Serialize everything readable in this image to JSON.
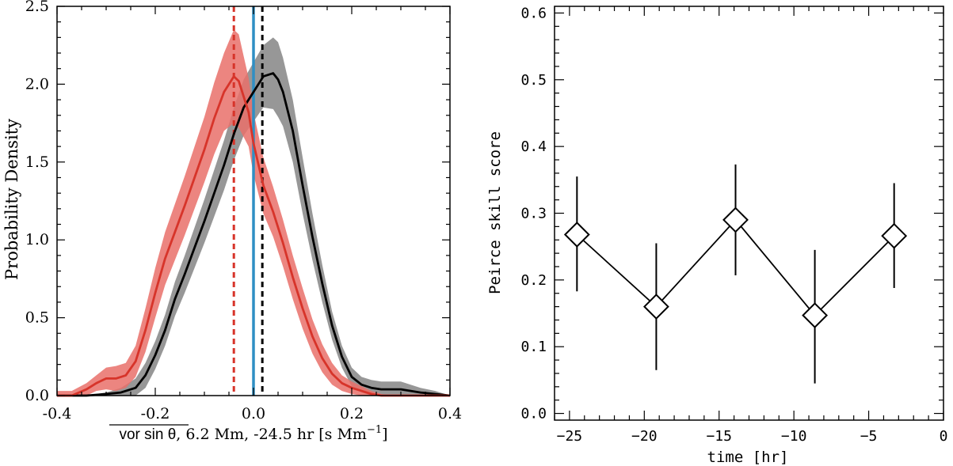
{
  "chart_data": [
    {
      "type": "line",
      "title": "",
      "ylabel": "Probability Density",
      "xlabel_main": "vor sin θ",
      "xlabel_rest": ", 6.2 Mm, -24.5 hr [s Mm",
      "xlabel_exp": "−1",
      "xlabel_close": "]",
      "xlim": [
        -0.4,
        0.4
      ],
      "ylim": [
        0,
        2.5
      ],
      "x_ticks": [
        "-0.4",
        "-0.2",
        "0.0",
        "0.2",
        "0.4"
      ],
      "y_ticks": [
        "0.0",
        "0.5",
        "1.0",
        "1.5",
        "2.0",
        "2.5"
      ],
      "colors": {
        "red": "#d7342a",
        "red_band": "#e9706a",
        "gray_band": "#8c8c8c",
        "black": "#000000",
        "blue": "#2f8fc4"
      },
      "series": [
        {
          "name": "red",
          "x": [
            -0.4,
            -0.37,
            -0.34,
            -0.32,
            -0.3,
            -0.28,
            -0.26,
            -0.24,
            -0.22,
            -0.2,
            -0.18,
            -0.16,
            -0.14,
            -0.12,
            -0.1,
            -0.08,
            -0.06,
            -0.04,
            -0.03,
            -0.02,
            -0.01,
            0.0,
            0.02,
            0.04,
            0.06,
            0.08,
            0.1,
            0.12,
            0.14,
            0.16,
            0.18,
            0.2,
            0.22,
            0.24,
            0.26,
            0.28,
            0.3,
            0.35,
            0.4
          ],
          "y": [
            0.0,
            0.0,
            0.04,
            0.08,
            0.11,
            0.11,
            0.13,
            0.22,
            0.42,
            0.66,
            0.88,
            1.05,
            1.22,
            1.4,
            1.58,
            1.78,
            1.95,
            2.05,
            2.02,
            1.92,
            1.82,
            1.62,
            1.35,
            1.18,
            0.98,
            0.76,
            0.56,
            0.38,
            0.24,
            0.14,
            0.08,
            0.05,
            0.03,
            0.01,
            0.0,
            0.0,
            0.0,
            0.0,
            0.0
          ],
          "band": [
            0.03,
            0.03,
            0.04,
            0.05,
            0.07,
            0.08,
            0.08,
            0.1,
            0.14,
            0.16,
            0.17,
            0.18,
            0.19,
            0.2,
            0.21,
            0.23,
            0.25,
            0.3,
            0.3,
            0.26,
            0.22,
            0.2,
            0.18,
            0.16,
            0.15,
            0.14,
            0.13,
            0.11,
            0.09,
            0.07,
            0.05,
            0.04,
            0.03,
            0.02,
            0.01,
            0.0,
            0.0,
            0.0,
            0.0
          ]
        },
        {
          "name": "black",
          "x": [
            -0.4,
            -0.34,
            -0.3,
            -0.27,
            -0.24,
            -0.22,
            -0.2,
            -0.18,
            -0.16,
            -0.14,
            -0.12,
            -0.1,
            -0.08,
            -0.06,
            -0.04,
            -0.02,
            0.0,
            0.02,
            0.04,
            0.05,
            0.06,
            0.08,
            0.1,
            0.12,
            0.14,
            0.16,
            0.18,
            0.2,
            0.22,
            0.24,
            0.26,
            0.28,
            0.3,
            0.32,
            0.34,
            0.37,
            0.4
          ],
          "y": [
            0.0,
            0.0,
            0.01,
            0.02,
            0.05,
            0.13,
            0.26,
            0.42,
            0.62,
            0.78,
            0.95,
            1.12,
            1.3,
            1.48,
            1.68,
            1.85,
            1.95,
            2.05,
            2.07,
            2.03,
            1.95,
            1.7,
            1.35,
            1.02,
            0.72,
            0.45,
            0.25,
            0.12,
            0.07,
            0.05,
            0.04,
            0.04,
            0.04,
            0.03,
            0.02,
            0.01,
            0.0
          ],
          "band": [
            0.0,
            0.0,
            0.01,
            0.03,
            0.06,
            0.08,
            0.09,
            0.1,
            0.11,
            0.12,
            0.13,
            0.14,
            0.15,
            0.16,
            0.17,
            0.18,
            0.19,
            0.2,
            0.23,
            0.24,
            0.22,
            0.2,
            0.18,
            0.15,
            0.12,
            0.09,
            0.07,
            0.06,
            0.05,
            0.05,
            0.05,
            0.05,
            0.05,
            0.04,
            0.03,
            0.02,
            0.0
          ]
        }
      ],
      "vlines": [
        {
          "name": "red-dashed",
          "x": -0.04,
          "style": "dashed",
          "color": "#d7342a"
        },
        {
          "name": "blue-solid",
          "x": 0.0,
          "style": "solid",
          "color": "#2f8fc4"
        },
        {
          "name": "black-dashed",
          "x": 0.018,
          "style": "dashed",
          "color": "#000000"
        }
      ]
    },
    {
      "type": "line",
      "title": "",
      "xlabel": "time [hr]",
      "ylabel": "Peirce skill score",
      "xlim": [
        -26,
        0
      ],
      "ylim": [
        -0.01,
        0.61
      ],
      "x_ticks": [
        -25,
        -20,
        -15,
        -10,
        -5,
        0
      ],
      "x_tick_labels": [
        "−25",
        "−20",
        "−15",
        "−10",
        "−5",
        "0"
      ],
      "y_ticks": [
        0.0,
        0.1,
        0.2,
        0.3,
        0.4,
        0.5,
        0.6
      ],
      "y_tick_labels": [
        "0.0",
        "0.1",
        "0.2",
        "0.3",
        "0.4",
        "0.5",
        "0.6"
      ],
      "series": [
        {
          "name": "peirce",
          "x": [
            -24.5,
            -19.2,
            -13.9,
            -8.6,
            -3.3
          ],
          "y": [
            0.268,
            0.16,
            0.29,
            0.147,
            0.266
          ],
          "err_low": [
            0.183,
            0.065,
            0.207,
            0.045,
            0.188
          ],
          "err_high": [
            0.355,
            0.255,
            0.373,
            0.245,
            0.345
          ],
          "marker": "diamond"
        }
      ]
    }
  ]
}
